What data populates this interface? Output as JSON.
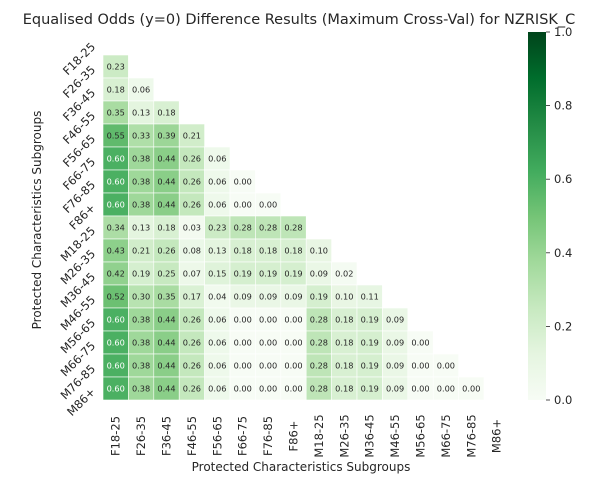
{
  "chart_data": {
    "type": "heatmap",
    "title": "Equalised Odds (y=0)  Difference Results (Maximum Cross-Val) for NZRISK_C",
    "xlabel": "Protected Characteristics Subgroups",
    "ylabel": "Protected Characteristics Subgroups",
    "categories": [
      "F18-25",
      "F26-35",
      "F36-45",
      "F46-55",
      "F56-65",
      "F66-75",
      "F76-85",
      "F86+",
      "M18-25",
      "M26-35",
      "M36-45",
      "M46-55",
      "M56-65",
      "M66-75",
      "M76-85",
      "M86+"
    ],
    "mask": "upper-triangle-including-diagonal",
    "values": [
      [],
      [
        "0.23"
      ],
      [
        "0.18",
        "0.06"
      ],
      [
        "0.35",
        "0.13",
        "0.18"
      ],
      [
        "0.55",
        "0.33",
        "0.39",
        "0.21"
      ],
      [
        "0.60",
        "0.38",
        "0.44",
        "0.26",
        "0.06"
      ],
      [
        "0.60",
        "0.38",
        "0.44",
        "0.26",
        "0.06",
        "0.00"
      ],
      [
        "0.60",
        "0.38",
        "0.44",
        "0.26",
        "0.06",
        "0.00",
        "0.00"
      ],
      [
        "0.34",
        "0.13",
        "0.18",
        "0.03",
        "0.23",
        "0.28",
        "0.28",
        "0.28"
      ],
      [
        "0.43",
        "0.21",
        "0.26",
        "0.08",
        "0.13",
        "0.18",
        "0.18",
        "0.18",
        "0.10"
      ],
      [
        "0.42",
        "0.19",
        "0.25",
        "0.07",
        "0.15",
        "0.19",
        "0.19",
        "0.19",
        "0.09",
        "0.02"
      ],
      [
        "0.52",
        "0.30",
        "0.35",
        "0.17",
        "0.04",
        "0.09",
        "0.09",
        "0.09",
        "0.19",
        "0.10",
        "0.11"
      ],
      [
        "0.60",
        "0.38",
        "0.44",
        "0.26",
        "0.06",
        "0.00",
        "0.00",
        "0.00",
        "0.28",
        "0.18",
        "0.19",
        "0.09"
      ],
      [
        "0.60",
        "0.38",
        "0.44",
        "0.26",
        "0.06",
        "0.00",
        "0.00",
        "0.00",
        "0.28",
        "0.18",
        "0.19",
        "0.09",
        "0.00"
      ],
      [
        "0.60",
        "0.38",
        "0.44",
        "0.26",
        "0.06",
        "0.00",
        "0.00",
        "0.00",
        "0.28",
        "0.18",
        "0.19",
        "0.09",
        "0.00",
        "0.00"
      ],
      [
        "0.60",
        "0.38",
        "0.44",
        "0.26",
        "0.06",
        "0.00",
        "0.00",
        "0.00",
        "0.28",
        "0.18",
        "0.19",
        "0.09",
        "0.00",
        "0.00",
        "0.00"
      ]
    ],
    "colorbar": {
      "range": [
        0,
        1
      ],
      "ticks": [
        "0.0",
        "0.2",
        "0.4",
        "0.6",
        "0.8",
        "1.0"
      ],
      "colormap": "Greens",
      "colors": [
        "#f7fcf5",
        "#e5f5e0",
        "#c7e9c0",
        "#a1d99b",
        "#74c476",
        "#41ab5d",
        "#238b45",
        "#006d2c",
        "#00441b"
      ]
    },
    "grid": false
  }
}
